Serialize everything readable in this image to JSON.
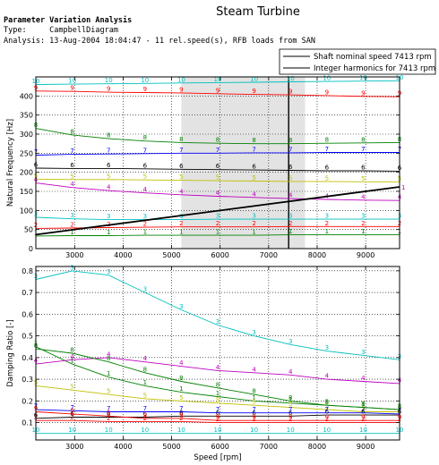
{
  "header": {
    "analysis_title": "Parameter Variation Analysis",
    "type_line": "Type:     CampbellDiagram",
    "analysis_line": "Analysis: 13-Aug-2004 18:04:47 - 11 rel.speed(s), RFB loads from SAN"
  },
  "chart_data": [
    {
      "type": "line",
      "title": "Steam Turbine",
      "xlabel": "",
      "ylabel": "Natural Frequency [Hz]",
      "xlim": [
        2200,
        9700
      ],
      "ylim": [
        0,
        450
      ],
      "xticks": [
        3000,
        4000,
        5000,
        6000,
        7000,
        8000,
        9000
      ],
      "yticks": [
        0,
        50,
        100,
        150,
        200,
        250,
        300,
        350,
        400
      ],
      "grid": true,
      "legend": {
        "placement": "top-right",
        "entries": [
          "Shaft nominal speed 7413 rpm",
          "Integer harmonics for 7413 rpm"
        ]
      },
      "shaded_range": [
        5200,
        7750
      ],
      "nominal_speed": 7413,
      "x": [
        2200,
        2950,
        3700,
        4450,
        5200,
        5950,
        6700,
        7450,
        8200,
        8950,
        9700
      ],
      "series": [
        {
          "label": "1",
          "color": "#008000",
          "values": [
            33,
            34,
            34,
            35,
            35,
            35,
            35,
            36,
            36,
            36,
            36
          ]
        },
        {
          "label": "2",
          "color": "#ff0000",
          "values": [
            53,
            54,
            55,
            56,
            57,
            57,
            57,
            58,
            58,
            58,
            58
          ]
        },
        {
          "label": "3",
          "color": "#00bfbf",
          "values": [
            82,
            78,
            76,
            76,
            76,
            77,
            77,
            77,
            77,
            77,
            77
          ]
        },
        {
          "label": "4",
          "color": "#bf00bf",
          "values": [
            172,
            160,
            152,
            146,
            141,
            137,
            134,
            131,
            129,
            127,
            126
          ]
        },
        {
          "label": "5",
          "color": "#bfbf00",
          "values": [
            182,
            181,
            181,
            180,
            179,
            178,
            177,
            176,
            176,
            175,
            175
          ]
        },
        {
          "label": "6",
          "color": "#000000",
          "values": [
            211,
            210,
            210,
            209,
            208,
            207,
            206,
            205,
            204,
            204,
            203
          ]
        },
        {
          "label": "7",
          "color": "#0000ff",
          "values": [
            245,
            247,
            248,
            249,
            250,
            250,
            251,
            251,
            252,
            252,
            252
          ]
        },
        {
          "label": "8",
          "color": "#008000",
          "values": [
            315,
            298,
            288,
            282,
            278,
            276,
            275,
            275,
            276,
            277,
            278
          ]
        },
        {
          "label": "9",
          "color": "#ff0000",
          "values": [
            413,
            412,
            410,
            409,
            408,
            406,
            404,
            403,
            401,
            399,
            398
          ]
        },
        {
          "label": "10",
          "color": "#00bfbf",
          "values": [
            430,
            431,
            432,
            433,
            434,
            435,
            436,
            437,
            438,
            439,
            440
          ]
        }
      ],
      "harmonic": {
        "label": "1",
        "color": "#000000",
        "x": [
          2200,
          9700
        ],
        "values": [
          36.7,
          161.7
        ]
      }
    },
    {
      "type": "line",
      "title": "",
      "xlabel": "Speed [rpm]",
      "ylabel": "Damping Ratio [-]",
      "xlim": [
        2200,
        9700
      ],
      "ylim": [
        0.02,
        0.82
      ],
      "xticks": [
        3000,
        4000,
        5000,
        6000,
        7000,
        8000,
        9000
      ],
      "yticks": [
        0.1,
        0.2,
        0.3,
        0.4,
        0.5,
        0.6,
        0.7,
        0.8
      ],
      "grid": true,
      "x": [
        2200,
        2950,
        3700,
        4450,
        5200,
        5950,
        6700,
        7450,
        8200,
        8950,
        9700
      ],
      "series": [
        {
          "label": "1",
          "color": "#008000",
          "values": [
            0.45,
            0.37,
            0.31,
            0.27,
            0.24,
            0.22,
            0.2,
            0.19,
            0.18,
            0.17,
            0.16
          ]
        },
        {
          "label": "2",
          "color": "#ff0000",
          "values": [
            0.11,
            0.11,
            0.105,
            0.105,
            0.105,
            0.1,
            0.1,
            0.1,
            0.1,
            0.1,
            0.1
          ]
        },
        {
          "label": "3",
          "color": "#00bfbf",
          "values": [
            0.76,
            0.8,
            0.78,
            0.7,
            0.62,
            0.55,
            0.5,
            0.46,
            0.43,
            0.41,
            0.39
          ]
        },
        {
          "label": "4",
          "color": "#bf00bf",
          "values": [
            0.37,
            0.39,
            0.4,
            0.38,
            0.36,
            0.34,
            0.33,
            0.32,
            0.3,
            0.29,
            0.28
          ]
        },
        {
          "label": "5",
          "color": "#bfbf00",
          "values": [
            0.27,
            0.25,
            0.23,
            0.21,
            0.2,
            0.19,
            0.18,
            0.17,
            0.16,
            0.15,
            0.15
          ]
        },
        {
          "label": "6",
          "color": "#000000",
          "values": [
            0.12,
            0.125,
            0.125,
            0.125,
            0.13,
            0.13,
            0.13,
            0.13,
            0.135,
            0.135,
            0.135
          ]
        },
        {
          "label": "7",
          "color": "#0000ff",
          "values": [
            0.16,
            0.155,
            0.15,
            0.15,
            0.15,
            0.145,
            0.145,
            0.145,
            0.145,
            0.145,
            0.14
          ]
        },
        {
          "label": "8",
          "color": "#008000",
          "values": [
            0.44,
            0.42,
            0.38,
            0.33,
            0.29,
            0.26,
            0.23,
            0.2,
            0.18,
            0.17,
            0.16
          ]
        },
        {
          "label": "9",
          "color": "#ff0000",
          "values": [
            0.15,
            0.14,
            0.13,
            0.12,
            0.12,
            0.11,
            0.11,
            0.11,
            0.11,
            0.11,
            0.11
          ]
        },
        {
          "label": "10",
          "color": "#00bfbf",
          "values": [
            0.05,
            0.05,
            0.05,
            0.05,
            0.05,
            0.05,
            0.05,
            0.05,
            0.05,
            0.05,
            0.05
          ]
        }
      ]
    }
  ]
}
